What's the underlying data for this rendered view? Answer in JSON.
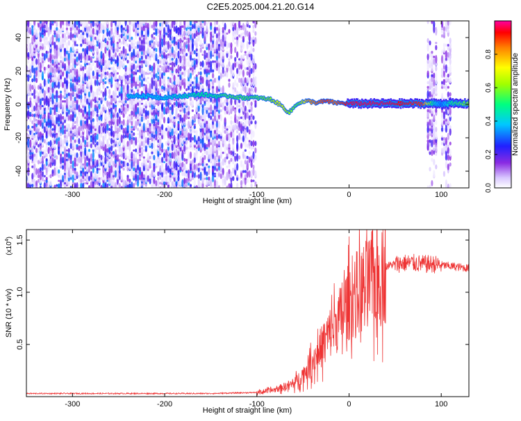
{
  "title": "C2E5.2025.004.21.20.G14",
  "chart_data": [
    {
      "type": "heatmap",
      "xlabel": "Height of straight line (km)",
      "ylabel": "Frequency (Hz)",
      "xlim": [
        -350,
        130
      ],
      "ylim": [
        -50,
        50
      ],
      "xticks": [
        -300,
        -200,
        -100,
        0,
        100
      ],
      "xtick_labels": [
        "-300",
        "-200",
        "-100",
        "0",
        "100"
      ],
      "yticks": [
        -40,
        -20,
        0,
        20,
        40
      ],
      "ytick_labels": [
        "-40",
        "-20",
        "0",
        "20",
        "40"
      ],
      "colorbar": {
        "label": "Normalized spectral amplitude",
        "range": [
          0,
          1
        ],
        "ticks": [
          0.0,
          0.2,
          0.4,
          0.6,
          0.8
        ],
        "tick_labels": [
          "0.0",
          "0.2",
          "0.4",
          "0.6",
          "0.8"
        ]
      },
      "ridge": {
        "x": [
          -240,
          -215,
          -205,
          -180,
          -160,
          -145,
          -130,
          -115,
          -100,
          -85,
          -75,
          -65,
          -55,
          -45,
          -35,
          -25,
          -15,
          0,
          40,
          80,
          90,
          100,
          110,
          130
        ],
        "y": [
          5,
          5,
          4,
          5,
          6,
          5,
          5,
          4,
          4,
          3,
          0,
          -5,
          1,
          2,
          1,
          2,
          1,
          0.5,
          0.5,
          0.5,
          0.5,
          0.5,
          0.5,
          0.5
        ],
        "amplitude": [
          0.4,
          0.4,
          0.4,
          0.45,
          0.5,
          0.5,
          0.55,
          0.55,
          0.55,
          0.6,
          0.7,
          0.6,
          0.55,
          0.8,
          0.85,
          0.9,
          0.85,
          0.95,
          0.95,
          0.9,
          0.5,
          0.3,
          0.5,
          0.6
        ]
      },
      "bursts_x": [
        90,
        105
      ]
    },
    {
      "type": "line",
      "xlabel": "Height of straight line (km)",
      "ylabel": "SNR (10 * v/v)",
      "y_multiplier": "(x10",
      "y_multiplier_exp": "4",
      "y_multiplier_close": ")",
      "xlim": [
        -350,
        130
      ],
      "ylim": [
        0,
        1.6
      ],
      "xticks": [
        -300,
        -200,
        -100,
        0,
        100
      ],
      "xtick_labels": [
        "-300",
        "-200",
        "-100",
        "0",
        "100"
      ],
      "yticks": [
        0.5,
        1.0,
        1.5
      ],
      "ytick_labels": [
        "0.5",
        "1.0",
        "1.5"
      ],
      "color": "#ee3333",
      "envelope": {
        "x": [
          -350,
          -150,
          -100,
          -80,
          -60,
          -50,
          -40,
          -30,
          -20,
          -10,
          0,
          10,
          20,
          30,
          40,
          50,
          60,
          70,
          80,
          90,
          100,
          110,
          120,
          130
        ],
        "y": [
          0.03,
          0.03,
          0.04,
          0.07,
          0.13,
          0.22,
          0.35,
          0.5,
          0.65,
          0.78,
          0.95,
          1.05,
          1.12,
          1.2,
          1.25,
          1.27,
          1.28,
          1.28,
          1.27,
          1.27,
          1.26,
          1.25,
          1.24,
          1.23
        ]
      }
    }
  ]
}
